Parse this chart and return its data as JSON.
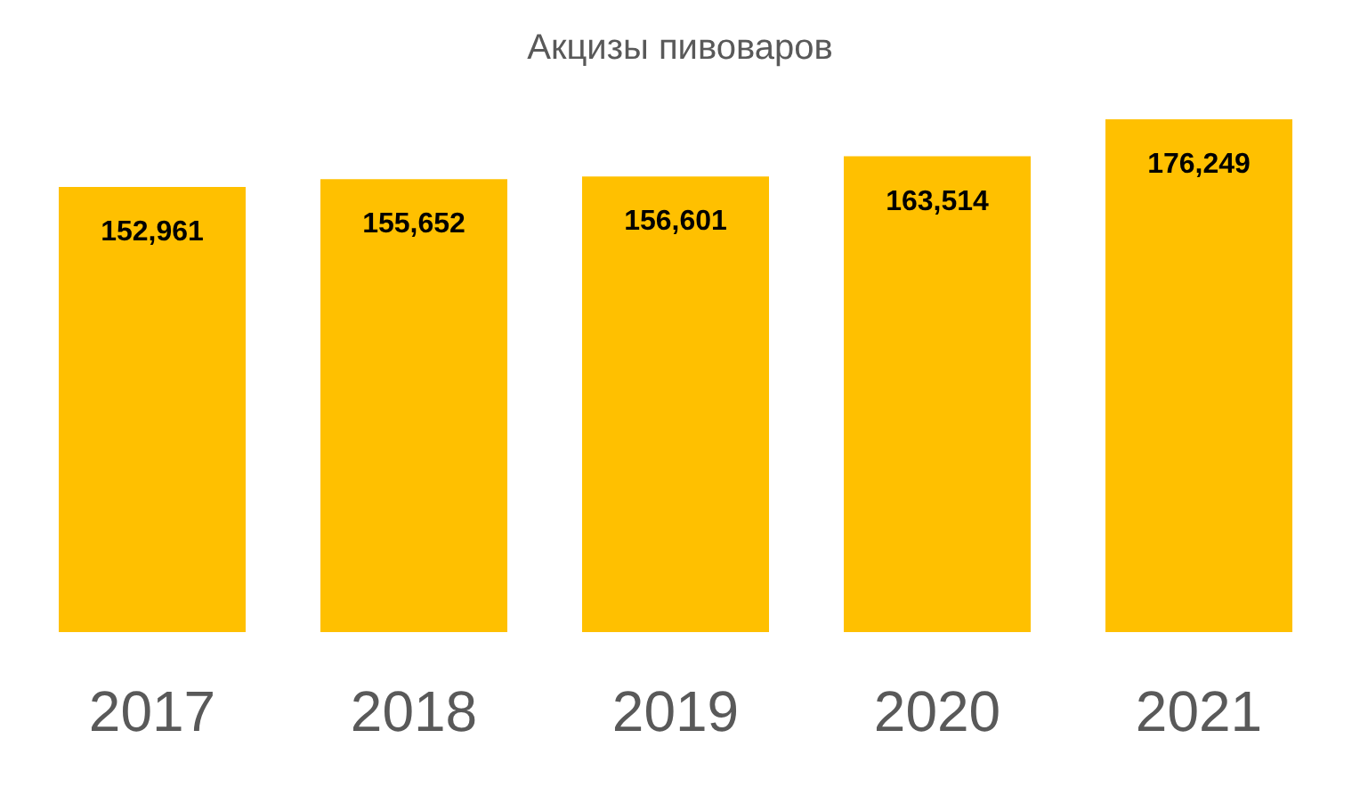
{
  "chart_data": {
    "type": "bar",
    "title": "Акцизы пивоваров",
    "categories": [
      "2017",
      "2018",
      "2019",
      "2020",
      "2021"
    ],
    "values": [
      152961,
      155652,
      156601,
      163514,
      176249
    ],
    "value_labels": [
      "152,961",
      "155,652",
      "156,601",
      "163,514",
      "176,249"
    ],
    "color": "#ffc000",
    "tick_labels": "x"
  }
}
